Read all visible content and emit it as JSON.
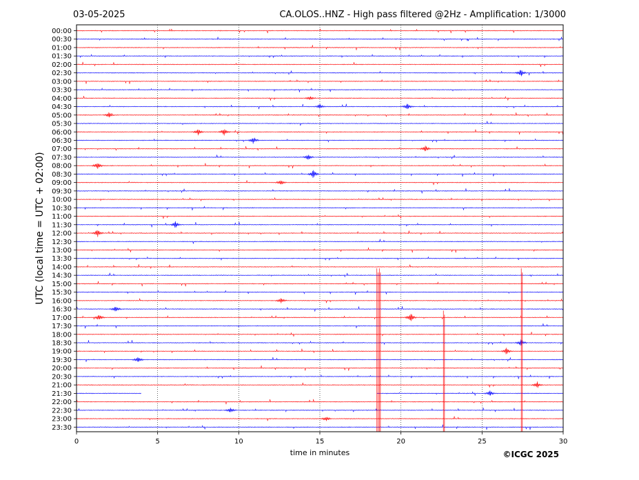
{
  "chart_data": {
    "type": "line",
    "title_left": "03-05-2025",
    "title_right": "CA.OLOS..HNZ - High pass filtered @2Hz - Amplification: 1/3000",
    "xlabel": "time in minutes",
    "ylabel": "UTC (local time = UTC + 02:00)",
    "credit": "©ICGC 2025",
    "xlim": [
      0,
      30
    ],
    "x_ticks": [
      "0",
      "5",
      "10",
      "15",
      "20",
      "25",
      "30"
    ],
    "x_tick_values": [
      0,
      5,
      10,
      15,
      20,
      25,
      30
    ],
    "y_ticks": [
      "00:00",
      "00:30",
      "01:00",
      "01:30",
      "02:00",
      "02:30",
      "03:00",
      "03:30",
      "04:00",
      "04:30",
      "05:00",
      "05:30",
      "06:00",
      "06:30",
      "07:00",
      "07:30",
      "08:00",
      "08:30",
      "09:00",
      "09:30",
      "10:00",
      "10:30",
      "11:00",
      "11:30",
      "12:00",
      "12:30",
      "13:00",
      "13:30",
      "14:00",
      "14:30",
      "15:00",
      "15:30",
      "16:00",
      "16:30",
      "17:00",
      "17:30",
      "18:00",
      "18:30",
      "19:00",
      "19:30",
      "20:00",
      "20:30",
      "21:00",
      "21:30",
      "22:00",
      "22:30",
      "23:00",
      "23:30"
    ],
    "grid": "vertical dotted at every 5 minutes",
    "trace_colors": [
      "#ff0000",
      "#0000ff"
    ],
    "data_gap": {
      "trace": "21:30",
      "from_min": 4.0,
      "to_min": 18.5
    },
    "events": [
      {
        "trace": "02:30",
        "t": 27.4,
        "amp": 6,
        "color": "#0000ff"
      },
      {
        "trace": "04:00",
        "t": 14.4,
        "amp": 3,
        "color": "#ff0000"
      },
      {
        "trace": "04:30",
        "t": 15.0,
        "amp": 4,
        "color": "#0000ff"
      },
      {
        "trace": "04:30",
        "t": 20.4,
        "amp": 5,
        "color": "#0000ff"
      },
      {
        "trace": "05:00",
        "t": 2.0,
        "amp": 4,
        "color": "#ff0000"
      },
      {
        "trace": "06:00",
        "t": 7.5,
        "amp": 5,
        "color": "#ff0000"
      },
      {
        "trace": "06:00",
        "t": 9.1,
        "amp": 5,
        "color": "#ff0000"
      },
      {
        "trace": "06:30",
        "t": 10.9,
        "amp": 5,
        "color": "#0000ff"
      },
      {
        "trace": "07:00",
        "t": 21.5,
        "amp": 5,
        "color": "#ff0000"
      },
      {
        "trace": "07:30",
        "t": 14.3,
        "amp": 5,
        "color": "#0000ff"
      },
      {
        "trace": "08:00",
        "t": 1.3,
        "amp": 6,
        "color": "#ff0000"
      },
      {
        "trace": "08:30",
        "t": 14.6,
        "amp": 7,
        "color": "#0000ff"
      },
      {
        "trace": "09:00",
        "t": 12.6,
        "amp": 4,
        "color": "#ff0000"
      },
      {
        "trace": "11:30",
        "t": 6.1,
        "amp": 5,
        "color": "#0000ff"
      },
      {
        "trace": "12:00",
        "t": 1.3,
        "amp": 6,
        "color": "#ff0000"
      },
      {
        "trace": "16:00",
        "t": 12.6,
        "amp": 4,
        "color": "#ff0000"
      },
      {
        "trace": "16:30",
        "t": 2.4,
        "amp": 5,
        "color": "#0000ff"
      },
      {
        "trace": "17:00",
        "t": 20.6,
        "amp": 7,
        "color": "#ff0000"
      },
      {
        "trace": "17:00",
        "t": 1.4,
        "amp": 5,
        "color": "#ff0000"
      },
      {
        "trace": "18:30",
        "t": 27.4,
        "amp": 5,
        "color": "#0000ff"
      },
      {
        "trace": "19:00",
        "t": 26.5,
        "amp": 5,
        "color": "#ff0000"
      },
      {
        "trace": "19:30",
        "t": 3.8,
        "amp": 5,
        "color": "#0000ff"
      },
      {
        "trace": "21:00",
        "t": 28.4,
        "amp": 5,
        "color": "#ff0000"
      },
      {
        "trace": "21:30",
        "t": 25.5,
        "amp": 4,
        "color": "#0000ff"
      },
      {
        "trace": "22:30",
        "t": 9.5,
        "amp": 4,
        "color": "#0000ff"
      },
      {
        "trace": "23:00",
        "t": 15.4,
        "amp": 4,
        "color": "#ff0000"
      }
    ],
    "spikes": [
      {
        "t": 18.55,
        "from": "14:30",
        "to": "23:30",
        "color": "#ff0000"
      },
      {
        "t": 18.7,
        "from": "14:30",
        "to": "23:30",
        "color": "#ff0000"
      },
      {
        "t": 22.65,
        "from": "17:00",
        "to": "23:30",
        "color": "#ff0000"
      },
      {
        "t": 27.45,
        "from": "14:30",
        "to": "23:30",
        "color": "#ff0000"
      }
    ]
  }
}
